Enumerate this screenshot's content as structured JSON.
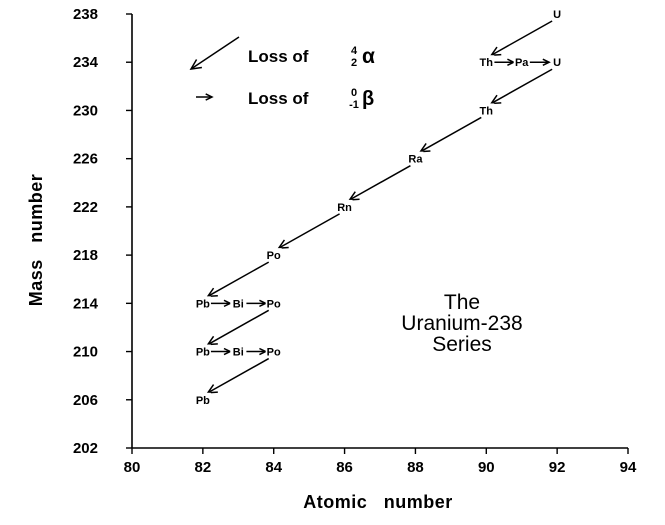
{
  "chart_data": {
    "type": "scatter",
    "xlabel": "Atomic   number",
    "ylabel": "Mass   number",
    "xlim": [
      80,
      94
    ],
    "ylim": [
      202,
      238
    ],
    "x_ticks": [
      80,
      82,
      84,
      86,
      88,
      90,
      92,
      94
    ],
    "y_ticks": [
      202,
      206,
      210,
      214,
      218,
      222,
      226,
      230,
      234,
      238
    ],
    "annotation": [
      "The",
      "Uranium-238",
      "Series"
    ],
    "legend": {
      "alpha": {
        "label": "Loss of",
        "upper": "4",
        "lower": "2",
        "symbol": "α"
      },
      "beta": {
        "label": "Loss of",
        "upper": "0",
        "lower": "-1",
        "symbol": "β"
      }
    },
    "nuclides": [
      {
        "label": "U",
        "x": 92,
        "y": 238
      },
      {
        "label": "Th",
        "x": 90,
        "y": 234
      },
      {
        "label": "Pa",
        "x": 91,
        "y": 234
      },
      {
        "label": "U",
        "x": 92,
        "y": 234
      },
      {
        "label": "Th",
        "x": 90,
        "y": 230
      },
      {
        "label": "Ra",
        "x": 88,
        "y": 226
      },
      {
        "label": "Rn",
        "x": 86,
        "y": 222
      },
      {
        "label": "Po",
        "x": 84,
        "y": 218
      },
      {
        "label": "Pb",
        "x": 82,
        "y": 214
      },
      {
        "label": "Bi",
        "x": 83,
        "y": 214
      },
      {
        "label": "Po",
        "x": 84,
        "y": 214
      },
      {
        "label": "Pb",
        "x": 82,
        "y": 210
      },
      {
        "label": "Bi",
        "x": 83,
        "y": 210
      },
      {
        "label": "Po",
        "x": 84,
        "y": 210
      },
      {
        "label": "Pb",
        "x": 82,
        "y": 206
      }
    ],
    "decays": [
      {
        "type": "alpha",
        "from": [
          92,
          238
        ],
        "to": [
          90,
          234
        ]
      },
      {
        "type": "beta",
        "from": [
          90,
          234
        ],
        "to": [
          91,
          234
        ]
      },
      {
        "type": "beta",
        "from": [
          91,
          234
        ],
        "to": [
          92,
          234
        ]
      },
      {
        "type": "alpha",
        "from": [
          92,
          234
        ],
        "to": [
          90,
          230
        ]
      },
      {
        "type": "alpha",
        "from": [
          90,
          230
        ],
        "to": [
          88,
          226
        ]
      },
      {
        "type": "alpha",
        "from": [
          88,
          226
        ],
        "to": [
          86,
          222
        ]
      },
      {
        "type": "alpha",
        "from": [
          86,
          222
        ],
        "to": [
          84,
          218
        ]
      },
      {
        "type": "alpha",
        "from": [
          84,
          218
        ],
        "to": [
          82,
          214
        ]
      },
      {
        "type": "beta",
        "from": [
          82,
          214
        ],
        "to": [
          83,
          214
        ]
      },
      {
        "type": "beta",
        "from": [
          83,
          214
        ],
        "to": [
          84,
          214
        ]
      },
      {
        "type": "alpha",
        "from": [
          84,
          214
        ],
        "to": [
          82,
          210
        ]
      },
      {
        "type": "beta",
        "from": [
          82,
          210
        ],
        "to": [
          83,
          210
        ]
      },
      {
        "type": "beta",
        "from": [
          83,
          210
        ],
        "to": [
          84,
          210
        ]
      },
      {
        "type": "alpha",
        "from": [
          84,
          210
        ],
        "to": [
          82,
          206
        ]
      }
    ]
  }
}
